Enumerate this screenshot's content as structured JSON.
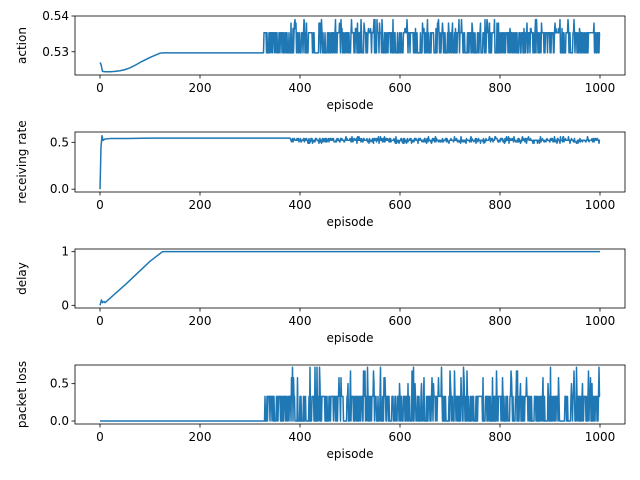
{
  "chart_data": [
    {
      "type": "line",
      "xlabel": "episode",
      "ylabel": "action",
      "xlim": [
        -50,
        1050
      ],
      "ylim": [
        0.5235,
        0.54
      ],
      "xticks": [
        0,
        200,
        400,
        600,
        800,
        1000
      ],
      "yticks": [
        0.53,
        0.54
      ],
      "ytick_labels": [
        "0.53",
        "0.54"
      ],
      "color": "#1f77b4",
      "series": [
        {
          "x": [
            0,
            2,
            5,
            10,
            20,
            30,
            40,
            50,
            60,
            70,
            80,
            90,
            100,
            110,
            120,
            125,
            200,
            300,
            325,
            400,
            450,
            500,
            550,
            600,
            650,
            700,
            750,
            800,
            850,
            900,
            950,
            1000
          ],
          "y": [
            0.527,
            0.5265,
            0.5245,
            0.5244,
            0.5244,
            0.5245,
            0.5247,
            0.525,
            0.5255,
            0.5262,
            0.527,
            0.5277,
            0.5284,
            0.529,
            0.5296,
            0.5297,
            0.5297,
            0.5297,
            0.5297,
            0.5297,
            0.5297,
            0.5297,
            0.5297,
            0.5297,
            0.5297,
            0.5297,
            0.5297,
            0.5297,
            0.5297,
            0.5297,
            0.5297,
            0.5297
          ]
        }
      ],
      "noise": {
        "start": 327,
        "end": 1000,
        "base": 0.5297,
        "common": [
          0.5353
        ],
        "rare": [
          0.5365,
          0.538,
          0.539
        ],
        "rare_from": 380
      }
    },
    {
      "type": "line",
      "xlabel": "episode",
      "ylabel": "receiving rate",
      "xlim": [
        -50,
        1050
      ],
      "ylim": [
        -0.03,
        0.61
      ],
      "xticks": [
        0,
        200,
        400,
        600,
        800,
        1000
      ],
      "yticks": [
        0.0,
        0.5
      ],
      "ytick_labels": [
        "0.0",
        "0.5"
      ],
      "color": "#1f77b4",
      "series": [
        {
          "x": [
            0,
            2,
            4,
            6,
            10,
            20,
            50,
            100,
            200,
            300,
            380,
            382,
            400,
            450,
            500,
            600,
            700,
            800,
            900,
            1000
          ],
          "y": [
            0.0,
            0.45,
            0.57,
            0.52,
            0.535,
            0.54,
            0.54,
            0.545,
            0.545,
            0.545,
            0.545,
            0.505,
            0.52,
            0.52,
            0.52,
            0.525,
            0.525,
            0.525,
            0.525,
            0.53
          ]
        }
      ],
      "noise": {
        "start": 382,
        "end": 1000,
        "base": 0.522,
        "common": [
          0.505,
          0.54
        ],
        "rare": [
          0.56,
          0.49
        ],
        "rare_from": 400
      }
    },
    {
      "type": "line",
      "xlabel": "episode",
      "ylabel": "delay",
      "xlim": [
        -50,
        1050
      ],
      "ylim": [
        -0.05,
        1.05
      ],
      "xticks": [
        0,
        200,
        400,
        600,
        800,
        1000
      ],
      "yticks": [
        0,
        1
      ],
      "ytick_labels": [
        "0",
        "1"
      ],
      "color": "#1f77b4",
      "series": [
        {
          "x": [
            0,
            3,
            5,
            8,
            10,
            50,
            100,
            125,
            200,
            400,
            600,
            800,
            1000
          ],
          "y": [
            0.0,
            0.1,
            0.05,
            0.07,
            0.05,
            0.38,
            0.82,
            1.0,
            1.0,
            1.0,
            1.0,
            1.0,
            1.0
          ]
        }
      ]
    },
    {
      "type": "line",
      "xlabel": "episode",
      "ylabel": "packet loss",
      "xlim": [
        -50,
        1050
      ],
      "ylim": [
        -0.04,
        0.75
      ],
      "xticks": [
        0,
        200,
        400,
        600,
        800,
        1000
      ],
      "yticks": [
        0.0,
        0.5
      ],
      "ytick_labels": [
        "0.0",
        "0.5"
      ],
      "color": "#1f77b4",
      "series": [
        {
          "x": [
            0,
            100,
            200,
            300,
            325,
            1000
          ],
          "y": [
            0.0,
            0.0,
            0.0,
            0.0,
            0.0,
            0.0
          ]
        }
      ],
      "noise": {
        "start": 327,
        "end": 1000,
        "base": 0.0,
        "common": [
          0.33
        ],
        "rare": [
          0.5,
          0.58,
          0.67,
          0.72
        ],
        "rare_from": 380
      }
    }
  ]
}
